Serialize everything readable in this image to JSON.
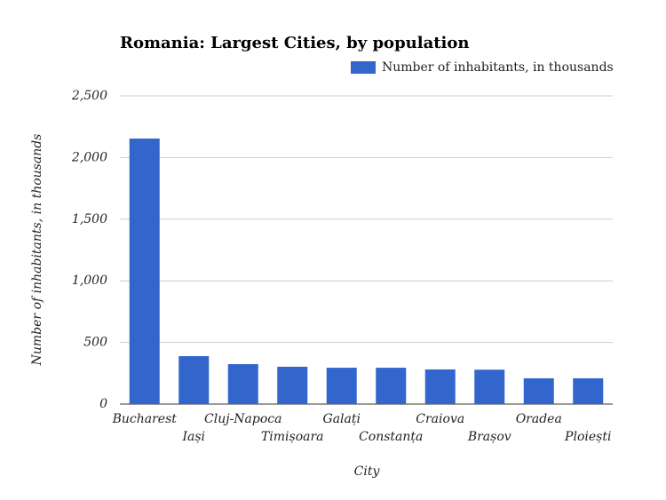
{
  "chart_data": {
    "type": "bar",
    "title": "Romania: Largest Cities, by population",
    "x_label": "City",
    "y_label": "Number of inhabitants, in thousands",
    "categories": [
      "Bucharest",
      "Iași",
      "Cluj-Napoca",
      "Timișoara",
      "Galați",
      "Constanța",
      "Craiova",
      "Brașov",
      "Oradea",
      "Ploiești"
    ],
    "series": [
      {
        "name": "Number of inhabitants, in thousands",
        "color": "#3366cc",
        "values": [
          2154,
          389,
          324,
          303,
          295,
          295,
          281,
          279,
          209,
          209
        ]
      }
    ],
    "ylim": [
      0,
      2500
    ],
    "yticks": [
      0,
      500,
      {
        "value": 1000,
        "label": "1,000"
      },
      {
        "value": 1500,
        "label": "1,500"
      },
      {
        "value": 2000,
        "label": "2,000"
      },
      {
        "value": 2500,
        "label": "2,500"
      }
    ],
    "grid": true,
    "legend_position": "top-right"
  }
}
